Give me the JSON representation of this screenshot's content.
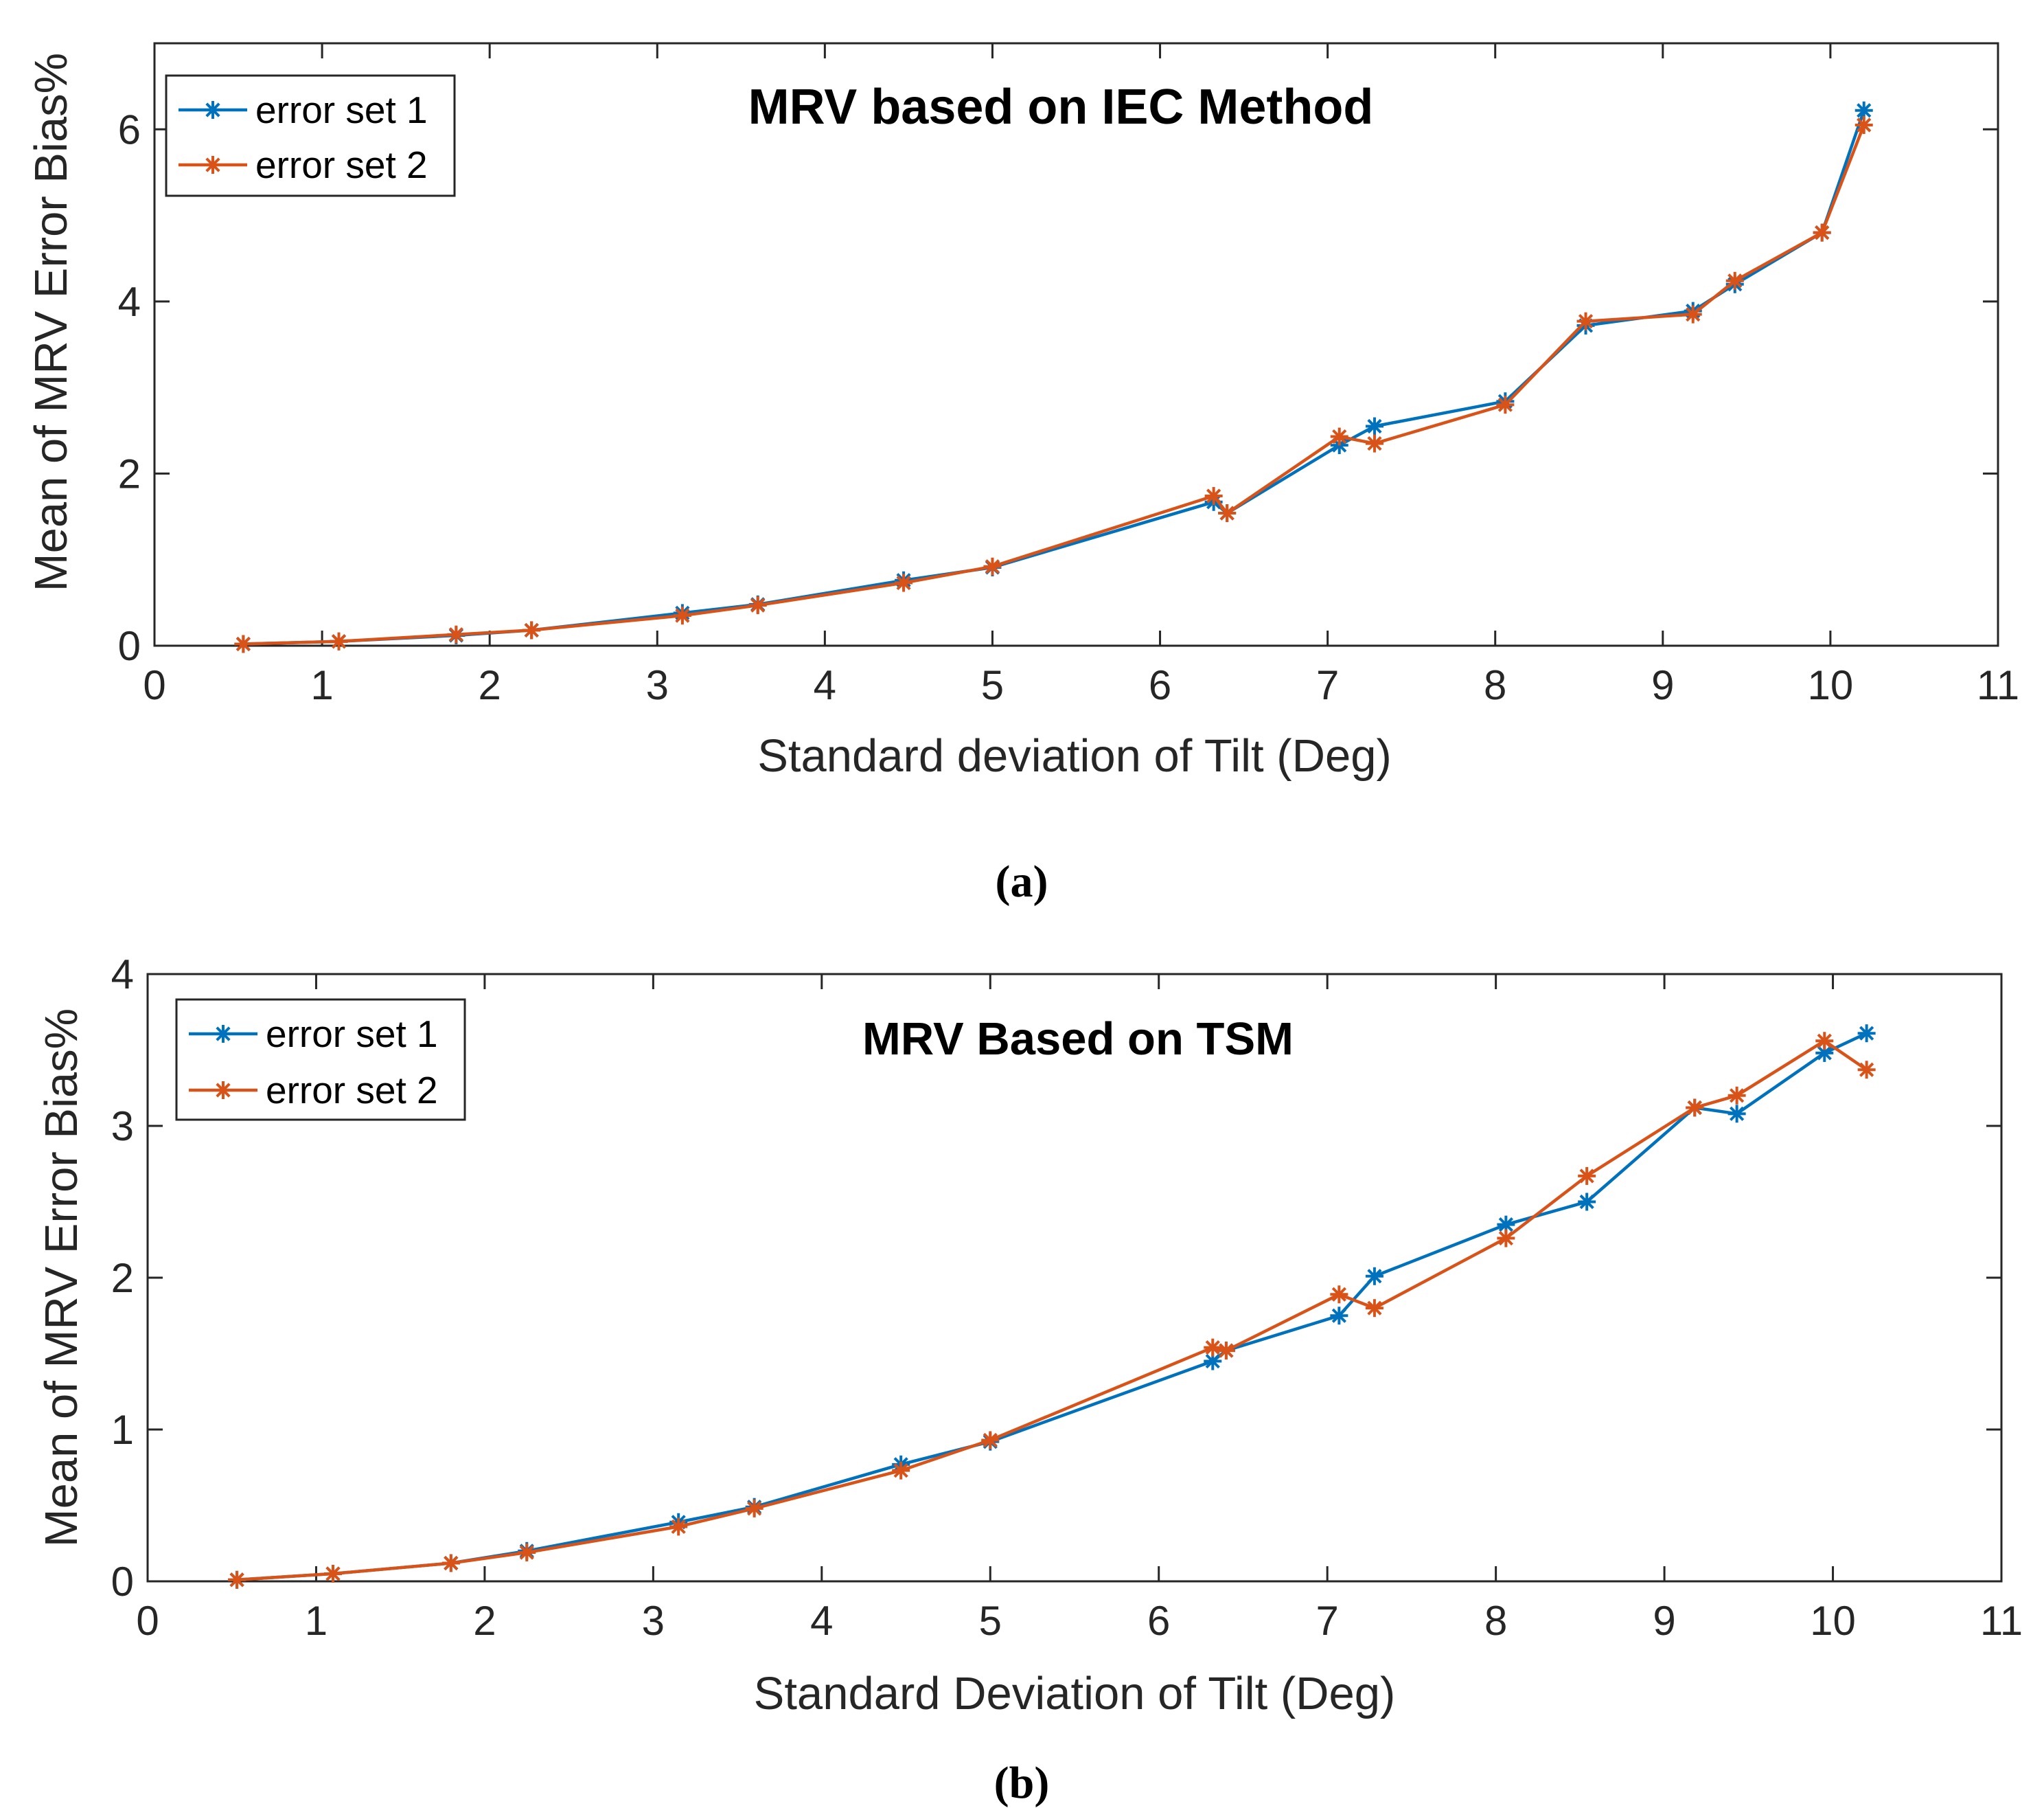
{
  "colors": {
    "series1": "#0072BD",
    "series2": "#D95319",
    "axis": "#262626",
    "background": "#ffffff"
  },
  "chart_data": [
    {
      "type": "line",
      "title": "MRV based on IEC Method",
      "xlabel": "Standard deviation of Tilt (Deg)",
      "ylabel": "Mean of MRV Error Bias%",
      "caption": "(a)",
      "xlim": [
        0,
        11
      ],
      "ylim": [
        0,
        7
      ],
      "xticks": [
        0,
        1,
        2,
        3,
        4,
        5,
        6,
        7,
        8,
        9,
        10,
        11
      ],
      "yticks": [
        0,
        2,
        4,
        6
      ],
      "grid": false,
      "legend_position": "top-left",
      "marker": "asterisk",
      "series": [
        {
          "name": "error set 1",
          "x": [
            0.53,
            1.1,
            1.8,
            2.25,
            3.15,
            3.6,
            4.47,
            5.0,
            6.32,
            6.4,
            7.07,
            7.28,
            8.06,
            8.54,
            9.18,
            9.43,
            9.95,
            10.2
          ],
          "y": [
            0.02,
            0.05,
            0.12,
            0.18,
            0.38,
            0.48,
            0.76,
            0.91,
            1.67,
            1.54,
            2.33,
            2.55,
            2.84,
            3.72,
            3.89,
            4.2,
            4.8,
            6.22
          ]
        },
        {
          "name": "error set 2",
          "x": [
            0.53,
            1.1,
            1.8,
            2.25,
            3.15,
            3.6,
            4.47,
            5.0,
            6.32,
            6.4,
            7.07,
            7.28,
            8.06,
            8.54,
            9.18,
            9.43,
            9.95,
            10.2
          ],
          "y": [
            0.02,
            0.05,
            0.13,
            0.18,
            0.35,
            0.47,
            0.73,
            0.92,
            1.74,
            1.54,
            2.43,
            2.35,
            2.8,
            3.77,
            3.85,
            4.24,
            4.8,
            6.05
          ]
        }
      ]
    },
    {
      "type": "line",
      "title": "MRV Based on TSM",
      "xlabel": "Standard Deviation of Tilt (Deg)",
      "ylabel": "Mean of MRV Error Bias%",
      "caption": "(b)",
      "xlim": [
        0,
        11
      ],
      "ylim": [
        0,
        4
      ],
      "xticks": [
        0,
        1,
        2,
        3,
        4,
        5,
        6,
        7,
        8,
        9,
        10,
        11
      ],
      "yticks": [
        0,
        1,
        2,
        3,
        4
      ],
      "grid": false,
      "legend_position": "top-left",
      "marker": "asterisk",
      "series": [
        {
          "name": "error set 1",
          "x": [
            0.53,
            1.1,
            1.8,
            2.25,
            3.15,
            3.6,
            4.47,
            5.0,
            6.32,
            6.4,
            7.07,
            7.28,
            8.06,
            8.54,
            9.18,
            9.43,
            9.95,
            10.2
          ],
          "y": [
            0.01,
            0.05,
            0.12,
            0.2,
            0.39,
            0.49,
            0.77,
            0.92,
            1.45,
            1.52,
            1.75,
            2.01,
            2.35,
            2.5,
            3.12,
            3.08,
            3.48,
            3.61
          ]
        },
        {
          "name": "error set 2",
          "x": [
            0.53,
            1.1,
            1.8,
            2.25,
            3.15,
            3.6,
            4.47,
            5.0,
            6.32,
            6.4,
            7.07,
            7.28,
            8.06,
            8.54,
            9.18,
            9.43,
            9.95,
            10.2
          ],
          "y": [
            0.01,
            0.05,
            0.12,
            0.19,
            0.36,
            0.48,
            0.73,
            0.93,
            1.54,
            1.52,
            1.89,
            1.8,
            2.26,
            2.67,
            3.12,
            3.2,
            3.56,
            3.37
          ]
        }
      ]
    }
  ]
}
